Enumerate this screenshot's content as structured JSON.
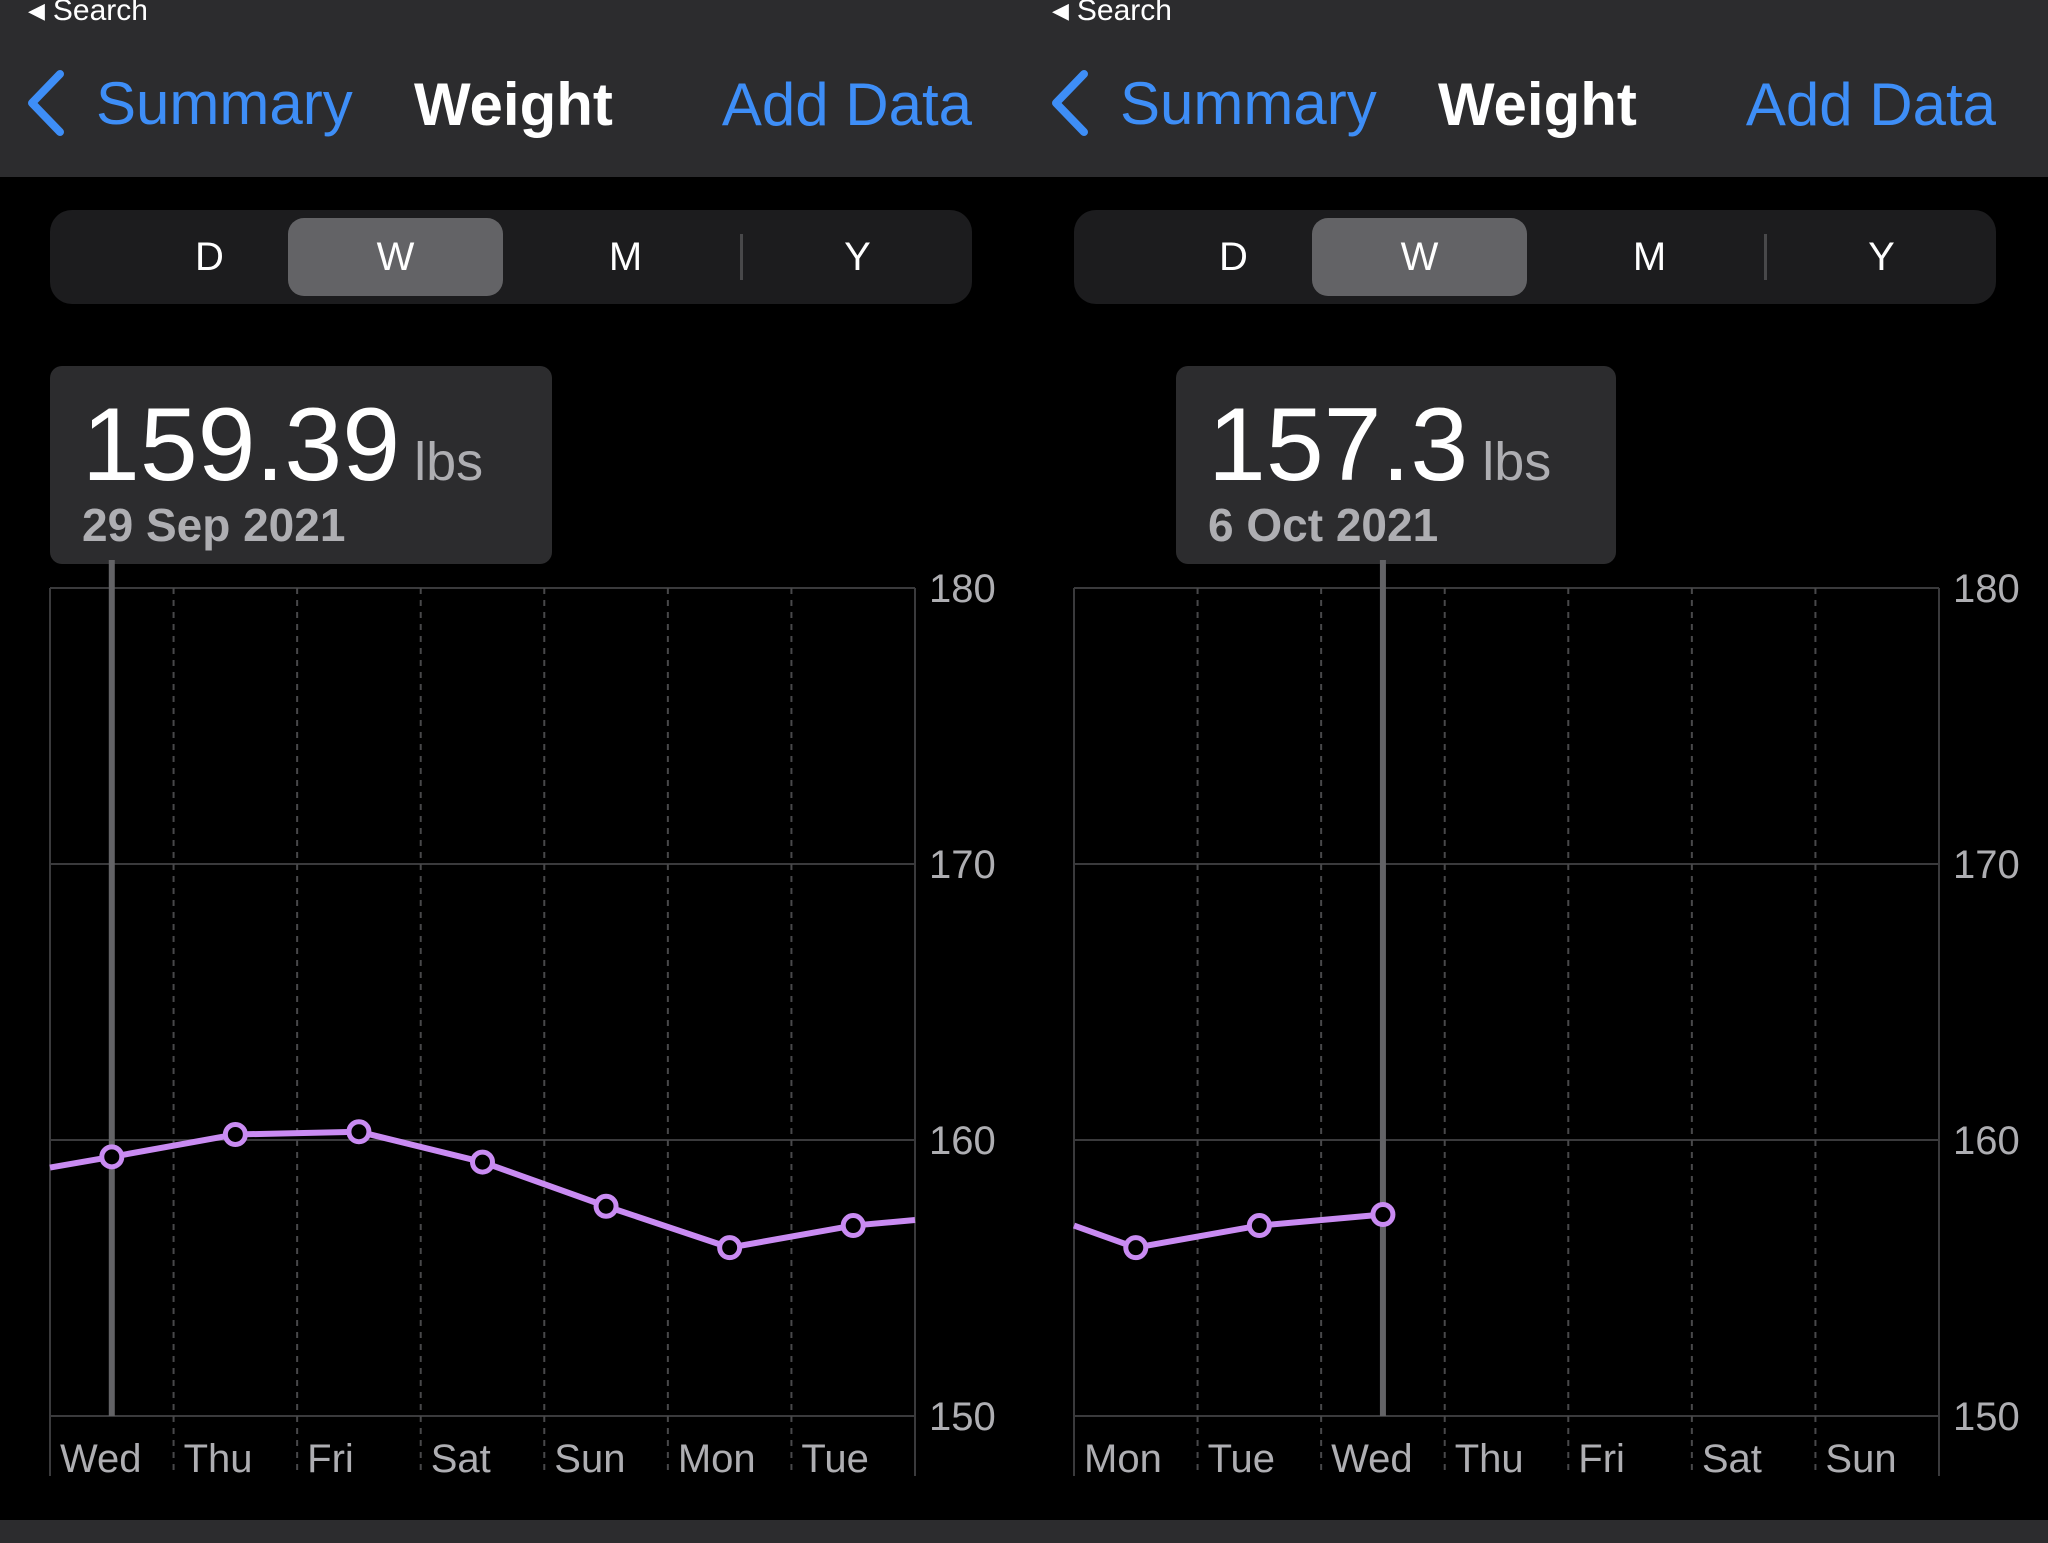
{
  "panels": [
    {
      "status_back": "Search",
      "nav": {
        "back_label": "Summary",
        "title": "Weight",
        "action": "Add Data"
      },
      "segments": [
        "D",
        "W",
        "M",
        "Y"
      ],
      "selected_segment": "W",
      "callout": {
        "value": "159.39",
        "unit": "lbs",
        "date": "29 Sep 2021"
      },
      "selected_index": 0,
      "chart_data": {
        "type": "line",
        "x": [
          "Wed",
          "Thu",
          "Fri",
          "Sat",
          "Sun",
          "Mon",
          "Tue"
        ],
        "y_ticks": [
          "180",
          "170",
          "160",
          "150"
        ],
        "ylim": [
          150,
          180
        ],
        "series": [
          {
            "values": [
              159.39,
              160.2,
              160.3,
              159.2,
              157.6,
              156.1,
              156.9
            ]
          }
        ],
        "lead_in_value": 159.0,
        "trail_value": 157.1,
        "line_color": "#c98bf2"
      }
    },
    {
      "status_back": "Search",
      "nav": {
        "back_label": "Summary",
        "title": "Weight",
        "action": "Add Data"
      },
      "segments": [
        "D",
        "W",
        "M",
        "Y"
      ],
      "selected_segment": "W",
      "callout": {
        "value": "157.3",
        "unit": "lbs",
        "date": "6 Oct 2021"
      },
      "selected_index": 2,
      "chart_data": {
        "type": "line",
        "x": [
          "Mon",
          "Tue",
          "Wed",
          "Thu",
          "Fri",
          "Sat",
          "Sun"
        ],
        "y_ticks": [
          "180",
          "170",
          "160",
          "150"
        ],
        "ylim": [
          150,
          180
        ],
        "series": [
          {
            "values": [
              156.1,
              156.9,
              157.3,
              null,
              null,
              null,
              null
            ]
          }
        ],
        "lead_in_value": 156.9,
        "trail_value": null,
        "line_color": "#c98bf2"
      }
    }
  ]
}
